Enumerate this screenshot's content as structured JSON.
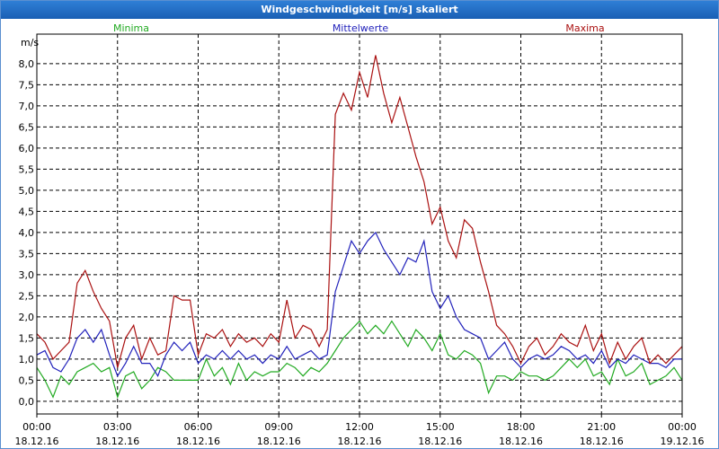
{
  "chart_data": {
    "type": "line",
    "title": "Windgeschwindigkeit [m/s] skaliert",
    "ylabel": "m/s",
    "ylim": [
      -0.3,
      8.7
    ],
    "yticks": [
      0,
      0.5,
      1,
      1.5,
      2,
      2.5,
      3,
      3.5,
      4,
      4.5,
      5,
      5.5,
      6,
      6.5,
      7,
      7.5,
      8
    ],
    "ytick_labels": [
      "0,0",
      "0,5",
      "1,0",
      "1,5",
      "2,0",
      "2,5",
      "3,0",
      "3,5",
      "4,0",
      "4,5",
      "5,0",
      "5,5",
      "6,0",
      "6,5",
      "7,0",
      "7,5",
      "8,0"
    ],
    "xlim_hours": [
      0,
      24
    ],
    "xticks_hours": [
      0,
      3,
      6,
      9,
      12,
      15,
      18,
      21,
      24
    ],
    "xtick_times": [
      "00:00",
      "03:00",
      "06:00",
      "09:00",
      "12:00",
      "15:00",
      "18:00",
      "21:00",
      "00:00"
    ],
    "xtick_dates": [
      "18.12.16",
      "18.12.16",
      "18.12.16",
      "18.12.16",
      "18.12.16",
      "18.12.16",
      "18.12.16",
      "18.12.16",
      "19.12.16"
    ],
    "grid": true,
    "series": [
      {
        "name": "Minima",
        "color": "#22aa22",
        "x": [
          0,
          0.3,
          0.6,
          0.9,
          1.2,
          1.5,
          1.8,
          2.1,
          2.4,
          2.7,
          3,
          3.3,
          3.6,
          3.9,
          4.2,
          4.5,
          4.8,
          5.1,
          5.4,
          5.7,
          6,
          6.3,
          6.6,
          6.9,
          7.2,
          7.5,
          7.8,
          8.1,
          8.4,
          8.7,
          9,
          9.3,
          9.6,
          9.9,
          10.2,
          10.5,
          10.8,
          11.1,
          11.4,
          11.7,
          12,
          12.3,
          12.6,
          12.9,
          13.2,
          13.5,
          13.8,
          14.1,
          14.4,
          14.7,
          15,
          15.3,
          15.6,
          15.9,
          16.2,
          16.5,
          16.8,
          17.1,
          17.4,
          17.7,
          18,
          18.3,
          18.6,
          18.9,
          19.2,
          19.5,
          19.8,
          20.1,
          20.4,
          20.7,
          21,
          21.3,
          21.6,
          21.9,
          22.2,
          22.5,
          22.8,
          23.1,
          23.4,
          23.7,
          24
        ],
        "values": [
          0.8,
          0.5,
          0.1,
          0.6,
          0.4,
          0.7,
          0.8,
          0.9,
          0.7,
          0.8,
          0.1,
          0.6,
          0.7,
          0.3,
          0.5,
          0.8,
          0.7,
          0.5,
          0.5,
          0.5,
          0.5,
          1.0,
          0.6,
          0.8,
          0.4,
          0.9,
          0.5,
          0.7,
          0.6,
          0.7,
          0.7,
          0.9,
          0.8,
          0.6,
          0.8,
          0.7,
          0.9,
          1.2,
          1.5,
          1.7,
          1.9,
          1.6,
          1.8,
          1.6,
          1.9,
          1.6,
          1.3,
          1.7,
          1.5,
          1.2,
          1.6,
          1.1,
          1.0,
          1.2,
          1.1,
          0.9,
          0.2,
          0.6,
          0.6,
          0.5,
          0.7,
          0.6,
          0.6,
          0.5,
          0.6,
          0.8,
          1.0,
          0.8,
          1.0,
          0.6,
          0.7,
          0.4,
          1.0,
          0.6,
          0.7,
          0.9,
          0.4,
          0.5,
          0.6,
          0.8,
          0.5
        ]
      },
      {
        "name": "Mittelwerte",
        "color": "#2222bb",
        "x": [
          0,
          0.3,
          0.6,
          0.9,
          1.2,
          1.5,
          1.8,
          2.1,
          2.4,
          2.7,
          3,
          3.3,
          3.6,
          3.9,
          4.2,
          4.5,
          4.8,
          5.1,
          5.4,
          5.7,
          6,
          6.3,
          6.6,
          6.9,
          7.2,
          7.5,
          7.8,
          8.1,
          8.4,
          8.7,
          9,
          9.3,
          9.6,
          9.9,
          10.2,
          10.5,
          10.8,
          11.1,
          11.4,
          11.7,
          12,
          12.3,
          12.6,
          12.9,
          13.2,
          13.5,
          13.8,
          14.1,
          14.4,
          14.7,
          15,
          15.3,
          15.6,
          15.9,
          16.2,
          16.5,
          16.8,
          17.1,
          17.4,
          17.7,
          18,
          18.3,
          18.6,
          18.9,
          19.2,
          19.5,
          19.8,
          20.1,
          20.4,
          20.7,
          21,
          21.3,
          21.6,
          21.9,
          22.2,
          22.5,
          22.8,
          23.1,
          23.4,
          23.7,
          24
        ],
        "values": [
          1.1,
          1.2,
          0.8,
          0.7,
          1.0,
          1.5,
          1.7,
          1.4,
          1.7,
          1.1,
          0.6,
          0.9,
          1.3,
          0.9,
          0.9,
          0.6,
          1.1,
          1.4,
          1.2,
          1.4,
          0.9,
          1.1,
          1.0,
          1.2,
          1.0,
          1.2,
          1.0,
          1.1,
          0.9,
          1.1,
          1.0,
          1.3,
          1.0,
          1.1,
          1.2,
          1.0,
          1.1,
          2.6,
          3.2,
          3.8,
          3.5,
          3.8,
          4.0,
          3.6,
          3.3,
          3.0,
          3.4,
          3.3,
          3.8,
          2.6,
          2.2,
          2.5,
          2.0,
          1.7,
          1.6,
          1.5,
          1.0,
          1.2,
          1.4,
          1.0,
          0.8,
          1.0,
          1.1,
          1.0,
          1.1,
          1.3,
          1.2,
          1.0,
          1.1,
          0.9,
          1.2,
          0.8,
          1.0,
          0.9,
          1.1,
          1.0,
          0.9,
          0.9,
          0.8,
          1.0,
          1.0
        ]
      },
      {
        "name": "Maxima",
        "color": "#aa1111",
        "x": [
          0,
          0.3,
          0.6,
          0.9,
          1.2,
          1.5,
          1.8,
          2.1,
          2.4,
          2.7,
          3,
          3.3,
          3.6,
          3.9,
          4.2,
          4.5,
          4.8,
          5.1,
          5.4,
          5.7,
          6,
          6.3,
          6.6,
          6.9,
          7.2,
          7.5,
          7.8,
          8.1,
          8.4,
          8.7,
          9,
          9.3,
          9.6,
          9.9,
          10.2,
          10.5,
          10.8,
          11.1,
          11.4,
          11.7,
          12,
          12.3,
          12.6,
          12.9,
          13.2,
          13.5,
          13.8,
          14.1,
          14.4,
          14.7,
          15,
          15.3,
          15.6,
          15.9,
          16.2,
          16.5,
          16.8,
          17.1,
          17.4,
          17.7,
          18,
          18.3,
          18.6,
          18.9,
          19.2,
          19.5,
          19.8,
          20.1,
          20.4,
          20.7,
          21,
          21.3,
          21.6,
          21.9,
          22.2,
          22.5,
          22.8,
          23.1,
          23.4,
          23.7,
          24
        ],
        "values": [
          1.6,
          1.4,
          1.0,
          1.2,
          1.4,
          2.8,
          3.1,
          2.6,
          2.2,
          1.9,
          0.8,
          1.5,
          1.8,
          1.0,
          1.5,
          1.1,
          1.2,
          2.5,
          2.4,
          2.4,
          1.1,
          1.6,
          1.5,
          1.7,
          1.3,
          1.6,
          1.4,
          1.5,
          1.3,
          1.6,
          1.4,
          2.4,
          1.5,
          1.8,
          1.7,
          1.3,
          1.7,
          6.8,
          7.3,
          6.9,
          7.8,
          7.2,
          8.2,
          7.3,
          6.6,
          7.2,
          6.5,
          5.8,
          5.2,
          4.2,
          4.6,
          3.8,
          3.4,
          4.3,
          4.1,
          3.3,
          2.6,
          1.8,
          1.6,
          1.3,
          0.9,
          1.3,
          1.5,
          1.1,
          1.3,
          1.6,
          1.4,
          1.3,
          1.8,
          1.2,
          1.6,
          0.9,
          1.4,
          1.0,
          1.3,
          1.5,
          0.9,
          1.1,
          0.9,
          1.1,
          1.3
        ]
      }
    ]
  }
}
